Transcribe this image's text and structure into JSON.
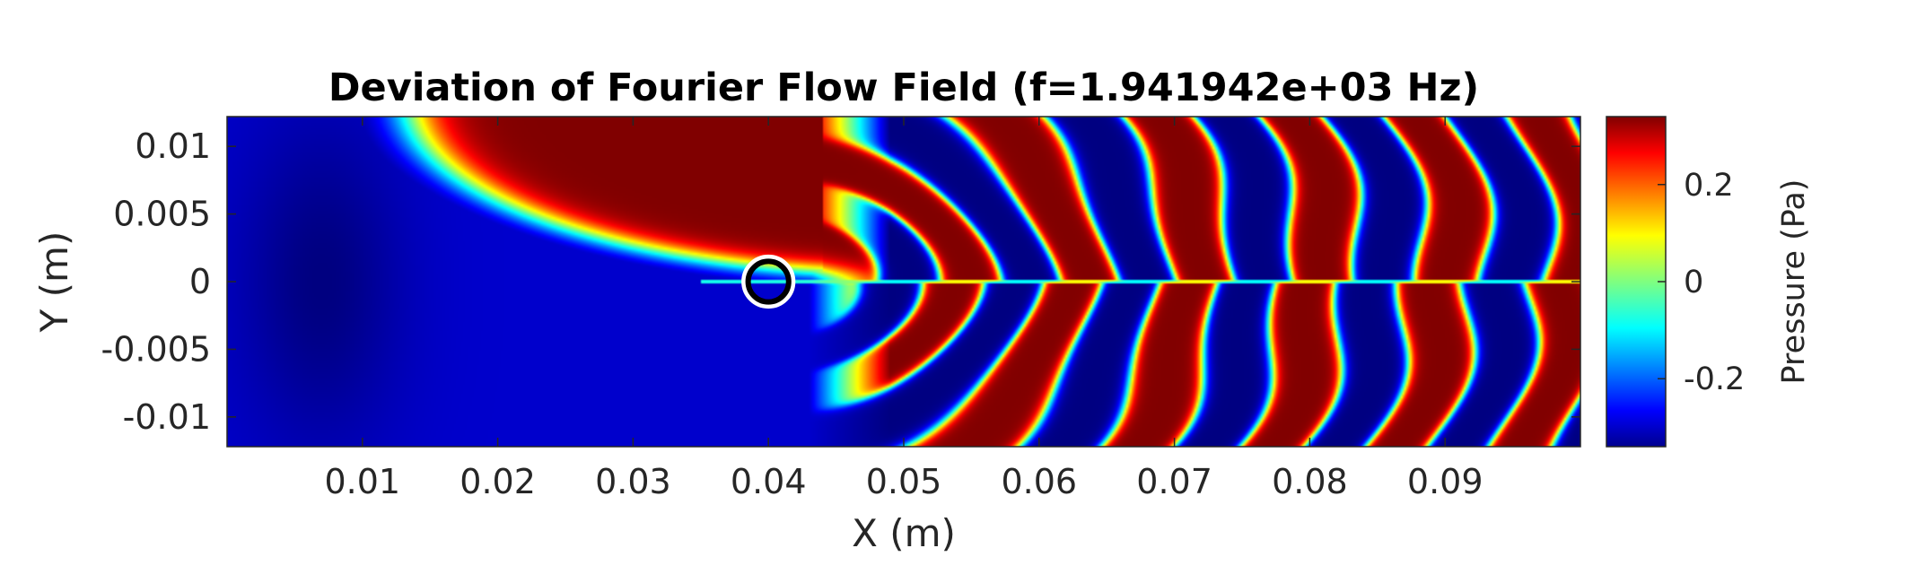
{
  "chart_data": {
    "type": "heatmap",
    "title": "Deviation of Fourier Flow Field (f=1.941942e+03 Hz)",
    "xlabel": "X (m)",
    "ylabel": "Y (m)",
    "xlim": [
      0,
      0.1
    ],
    "ylim": [
      -0.0122,
      0.0122
    ],
    "x_ticks": [
      0.01,
      0.02,
      0.03,
      0.04,
      0.05,
      0.06,
      0.07,
      0.08,
      0.09
    ],
    "x_tick_labels": [
      "0.01",
      "0.02",
      "0.03",
      "0.04",
      "0.05",
      "0.06",
      "0.07",
      "0.08",
      "0.09"
    ],
    "y_ticks": [
      0.01,
      0.005,
      0,
      -0.005,
      -0.01
    ],
    "y_tick_labels": [
      "0.01",
      "0.005",
      "0",
      "-0.005",
      "-0.01"
    ],
    "colormap": "jet",
    "colorbar": {
      "label": "Pressure (Pa)",
      "clim": [
        -0.34,
        0.34
      ],
      "ticks": [
        0.2,
        0,
        -0.2
      ],
      "tick_labels": [
        "0.2",
        "0",
        "-0.2"
      ]
    },
    "features": {
      "cylinder_center": [
        0.04,
        0.0
      ],
      "cylinder_radius": 0.0013,
      "plume_region": "upper half from x≈0.015 to x≈0.05 saturated at positive maximum",
      "wave_region": "alternating positive/negative bands from x≈0.045 to x≈0.1",
      "wave_wavelength_m": 0.0092
    },
    "grid": false
  }
}
